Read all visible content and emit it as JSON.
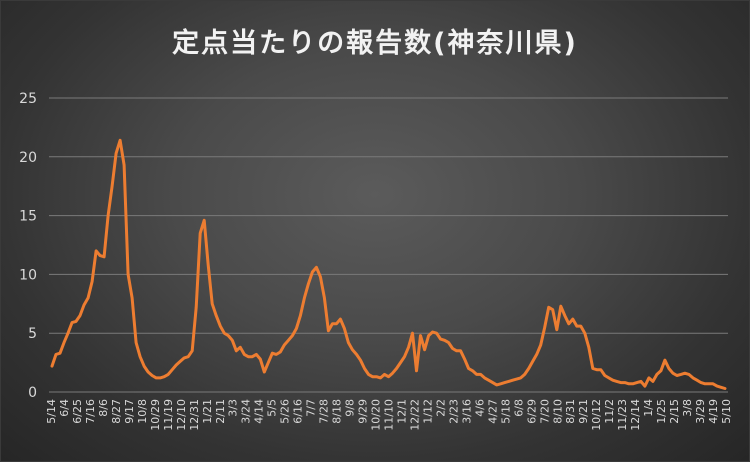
{
  "chart_data": {
    "type": "line",
    "title": "定点当たりの報告数(神奈川県)",
    "xlabel": "",
    "ylabel": "",
    "ylim": [
      0,
      25
    ],
    "yticks": [
      0,
      5,
      10,
      15,
      20,
      25
    ],
    "grid": true,
    "legend": "none",
    "line_color": "#ED7D31",
    "x_tick_labels": [
      "5/14",
      "6/4",
      "6/25",
      "7/16",
      "8/6",
      "8/27",
      "9/17",
      "10/8",
      "10/29",
      "11/19",
      "12/10",
      "12/31",
      "1/21",
      "2/11",
      "3/3",
      "3/24",
      "4/14",
      "5/5",
      "5/26",
      "6/16",
      "7/7",
      "7/28",
      "8/18",
      "9/8",
      "9/29",
      "10/20",
      "11/10",
      "12/1",
      "12/22",
      "1/12",
      "2/2",
      "2/23",
      "3/16",
      "4/6",
      "4/27",
      "5/18",
      "6/8",
      "6/29",
      "7/20",
      "8/10",
      "8/31",
      "9/21",
      "10/12",
      "11/2",
      "11/23",
      "12/14",
      "1/4",
      "1/25",
      "2/15",
      "3/8",
      "3/29",
      "4/19",
      "5/10"
    ],
    "values": [
      2.2,
      3.2,
      3.3,
      4.2,
      5.0,
      5.9,
      6.0,
      6.5,
      7.4,
      8.0,
      9.4,
      12.0,
      11.6,
      11.5,
      15.0,
      17.5,
      20.3,
      21.4,
      19.3,
      10.0,
      8.0,
      4.2,
      3.0,
      2.2,
      1.7,
      1.4,
      1.2,
      1.2,
      1.3,
      1.5,
      1.9,
      2.3,
      2.6,
      2.9,
      3.0,
      3.5,
      7.2,
      13.5,
      14.6,
      10.8,
      7.5,
      6.5,
      5.6,
      5.0,
      4.8,
      4.4,
      3.5,
      3.8,
      3.2,
      3.0,
      3.0,
      3.2,
      2.8,
      1.7,
      2.5,
      3.3,
      3.2,
      3.4,
      4.0,
      4.4,
      4.8,
      5.4,
      6.5,
      8.0,
      9.2,
      10.2,
      10.6,
      9.8,
      8.0,
      5.2,
      5.8,
      5.8,
      6.2,
      5.4,
      4.2,
      3.6,
      3.2,
      2.7,
      2.0,
      1.5,
      1.3,
      1.3,
      1.2,
      1.5,
      1.3,
      1.6,
      2.0,
      2.5,
      3.0,
      3.8,
      5.0,
      1.8,
      4.8,
      3.6,
      4.8,
      5.1,
      5.0,
      4.5,
      4.4,
      4.2,
      3.7,
      3.5,
      3.5,
      2.8,
      2.0,
      1.8,
      1.5,
      1.5,
      1.2,
      1.0,
      0.8,
      0.6,
      0.7,
      0.8,
      0.9,
      1.0,
      1.1,
      1.2,
      1.5,
      2.0,
      2.6,
      3.2,
      4.0,
      5.5,
      7.2,
      7.0,
      5.3,
      7.3,
      6.5,
      5.8,
      6.2,
      5.6,
      5.6,
      5.0,
      3.8,
      2.0,
      1.9,
      1.9,
      1.4,
      1.2,
      1.0,
      0.9,
      0.8,
      0.8,
      0.7,
      0.7,
      0.8,
      0.9,
      0.5,
      1.2,
      0.9,
      1.5,
      1.8,
      2.7,
      2.0,
      1.6,
      1.4,
      1.5,
      1.6,
      1.5,
      1.2,
      1.0,
      0.8,
      0.7,
      0.7,
      0.7,
      0.5,
      0.4,
      0.3
    ]
  }
}
